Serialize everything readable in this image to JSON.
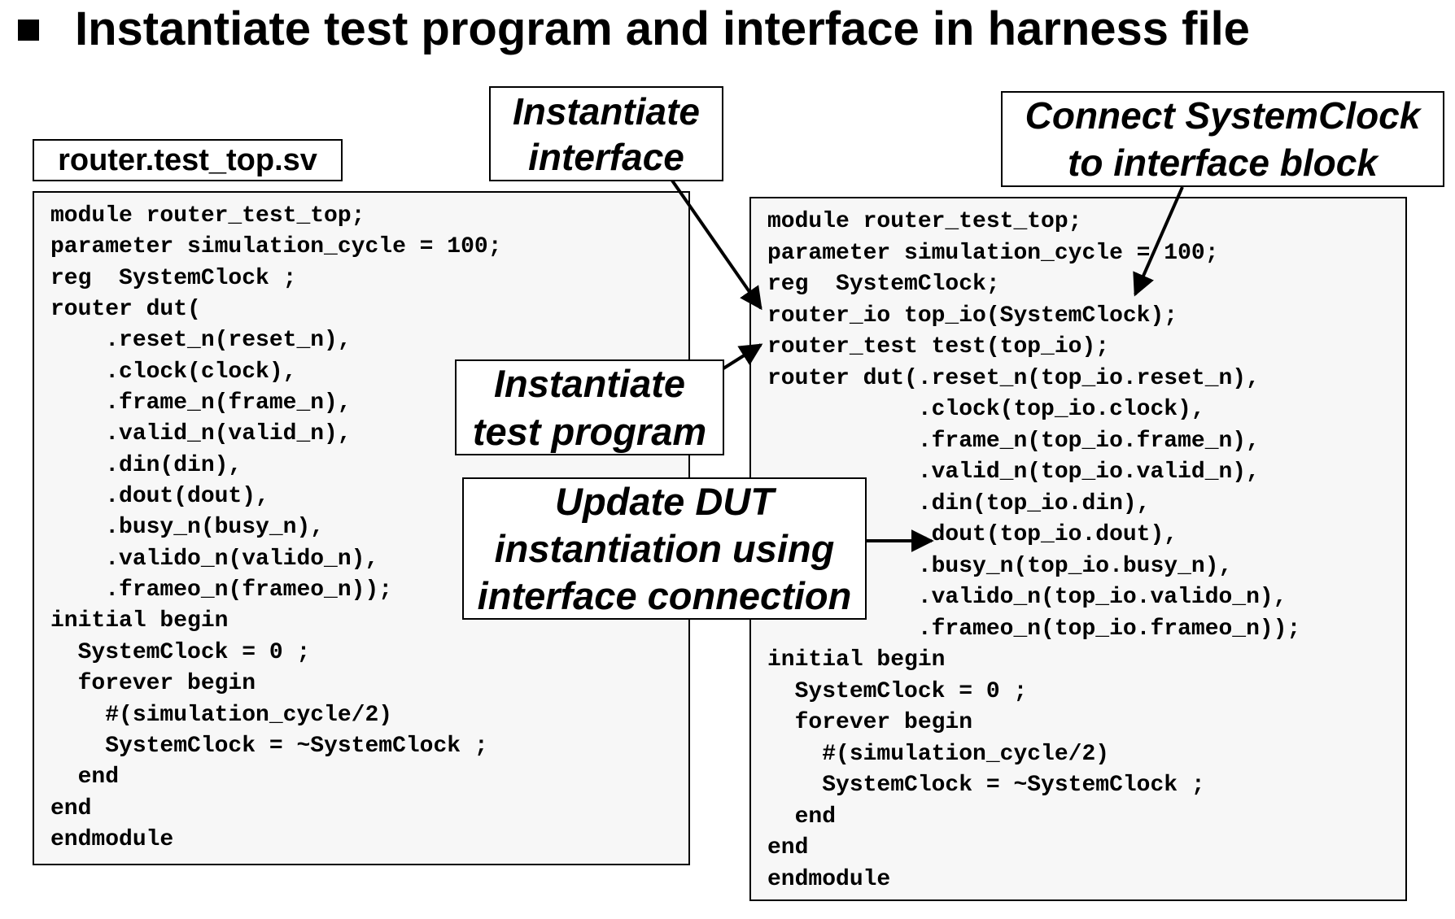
{
  "slide": {
    "title": "Instantiate test program and interface in harness file",
    "bullet": "square-bullet"
  },
  "file_label": "router.test_top.sv",
  "left_code": {
    "lines": [
      "module router_test_top;",
      "parameter simulation_cycle = 100;",
      "reg  SystemClock ;",
      "router dut(",
      "    .reset_n(reset_n),",
      "    .clock(clock),",
      "    .frame_n(frame_n),",
      "    .valid_n(valid_n),",
      "    .din(din),",
      "    .dout(dout),",
      "    .busy_n(busy_n),",
      "    .valido_n(valido_n),",
      "    .frameo_n(frameo_n));",
      "initial begin",
      "  SystemClock = 0 ;",
      "  forever begin",
      "    #(simulation_cycle/2)",
      "    SystemClock = ~SystemClock ;",
      "  end",
      "end",
      "endmodule"
    ]
  },
  "right_code": {
    "lines": [
      "module router_test_top;",
      "parameter simulation_cycle = 100;",
      "reg  SystemClock;",
      "router_io top_io(SystemClock);",
      "router_test test(top_io);",
      "router dut(.reset_n(top_io.reset_n),",
      "           .clock(top_io.clock),",
      "           .frame_n(top_io.frame_n),",
      "           .valid_n(top_io.valid_n),",
      "           .din(top_io.din),",
      "           .dout(top_io.dout),",
      "           .busy_n(top_io.busy_n),",
      "           .valido_n(top_io.valido_n),",
      "           .frameo_n(top_io.frameo_n));",
      "initial begin",
      "  SystemClock = 0 ;",
      "  forever begin",
      "    #(simulation_cycle/2)",
      "    SystemClock = ~SystemClock ;",
      "  end",
      "end",
      "endmodule"
    ]
  },
  "callouts": {
    "instantiate_interface": [
      "Instantiate",
      "interface"
    ],
    "connect_clock": [
      "Connect SystemClock",
      "to interface block"
    ],
    "instantiate_program": [
      "Instantiate",
      "test program"
    ],
    "update_dut": [
      "Update DUT",
      "instantiation using",
      "interface connection"
    ]
  },
  "colors": {
    "panel_background": "#f7f7f7",
    "border": "#000000",
    "text": "#000000",
    "page_background": "#ffffff"
  }
}
